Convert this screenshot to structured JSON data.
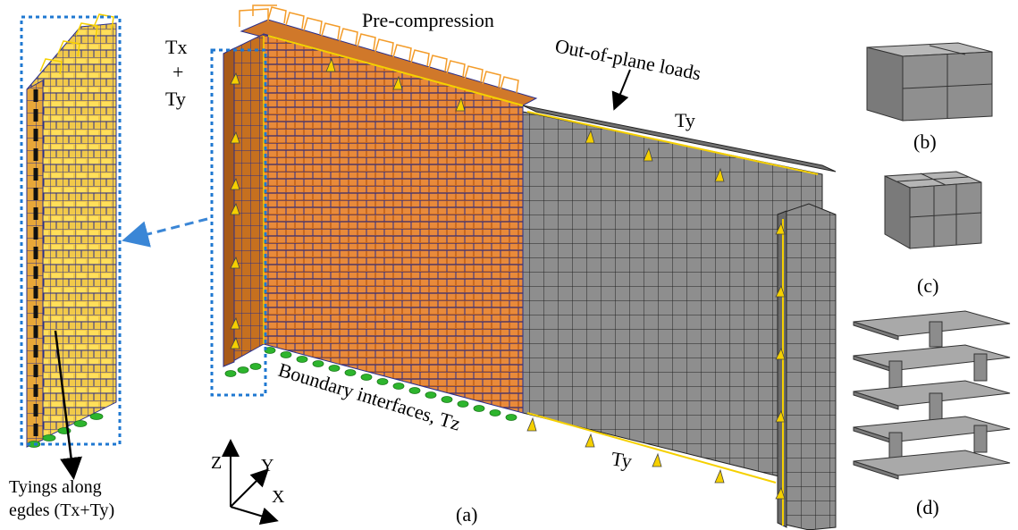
{
  "labels": {
    "pre_compression": "Pre-compression",
    "out_of_plane": "Out-of-plane loads",
    "tx": "Tx",
    "plus": "+",
    "ty_left": "Ty",
    "ty_top": "Ty",
    "ty_bottom": "Ty",
    "boundary": "Boundary interfaces, Tz",
    "tyings_line1": "Tyings along",
    "tyings_line2": "egdes (Tx+Ty)",
    "axis_z": "Z",
    "axis_y": "Y",
    "axis_x": "X",
    "panel_a": "(a)",
    "panel_b": "(b)",
    "panel_c": "(c)",
    "panel_d": "(d)"
  },
  "colors": {
    "brick_orange": "#d97a2b",
    "brick_light": "#f0a050",
    "grid_blue": "#2a2f8c",
    "steel_grey": "#8c8c8c",
    "edge_yellow": "#f5d000",
    "support_green": "#2db52d",
    "callout_blue": "#1f78d1"
  }
}
